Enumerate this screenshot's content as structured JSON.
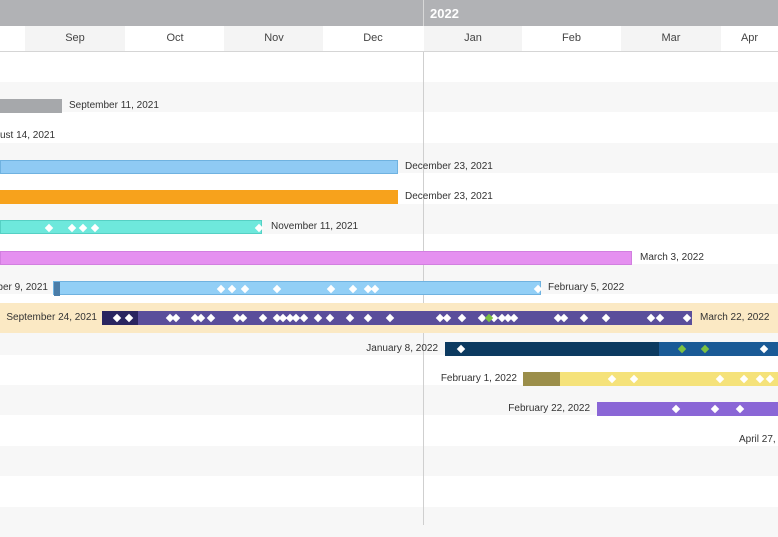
{
  "header": {
    "year": "2022",
    "months": [
      "Sep",
      "Oct",
      "Nov",
      "Dec",
      "Jan",
      "Feb",
      "Mar",
      "Apr"
    ]
  },
  "rows": [
    {
      "label": "September 11, 2021",
      "color": "#a6a8ab"
    },
    {
      "label": "ust 14, 2021"
    },
    {
      "label": "December 23, 2021",
      "color": "#8fcaf4"
    },
    {
      "label": "December 23, 2021",
      "color": "#f7a21c"
    },
    {
      "label": "November 11, 2021",
      "color": "#6ee8dc"
    },
    {
      "label": "March 3, 2022",
      "color": "#e590f0"
    },
    {
      "label_start": "ber 9, 2021",
      "label_end": "February 5, 2022",
      "color": "#92cff6"
    },
    {
      "label_start": "September 24, 2021",
      "label_end": "March 22, 2022",
      "color": "#5a4e9b",
      "band_color": "#fbe9c4"
    },
    {
      "label_start": "January 8, 2022",
      "color": "#0c3a60"
    },
    {
      "label_start": "February 1, 2022",
      "color": "#f5e27a"
    },
    {
      "label_start": "February 22, 2022",
      "color": "#8a66d6"
    },
    {
      "label_start": "April 27,"
    }
  ]
}
